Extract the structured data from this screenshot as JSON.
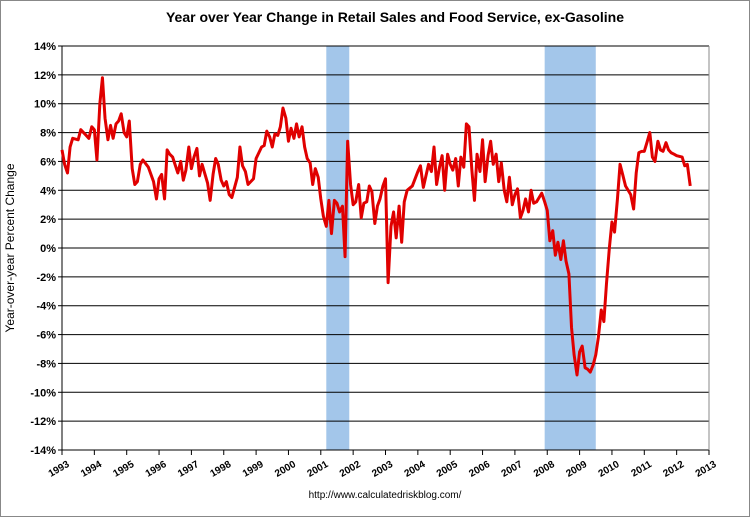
{
  "chart_data": {
    "type": "line",
    "title": "Year over Year Change in Retail Sales and Food Service, ex-Gasoline",
    "y_label": "Year-over-year Percent Change",
    "source": "http://www.calculatedriskblog.com/",
    "color": "#e00000",
    "shade_color": "#a3c6ea",
    "shaded_ranges": [
      [
        2001.17,
        2001.88
      ],
      [
        2007.92,
        2009.5
      ]
    ],
    "grid": true,
    "xlim": [
      1993,
      2013
    ],
    "xticks": [
      1993,
      1994,
      1995,
      1996,
      1997,
      1998,
      1999,
      2000,
      2001,
      2002,
      2003,
      2004,
      2005,
      2006,
      2007,
      2008,
      2009,
      2010,
      2011,
      2012,
      2013
    ],
    "ylim": [
      -14,
      14
    ],
    "yticks": [
      {
        "value": -14,
        "label": "-14%"
      },
      {
        "value": -12,
        "label": "-12%"
      },
      {
        "value": -10,
        "label": "-10%"
      },
      {
        "value": -8,
        "label": "-8%"
      },
      {
        "value": -6,
        "label": "-6%"
      },
      {
        "value": -4,
        "label": "-4%"
      },
      {
        "value": -2,
        "label": "-2%"
      },
      {
        "value": 0,
        "label": "0%"
      },
      {
        "value": 2,
        "label": "2%"
      },
      {
        "value": 4,
        "label": "4%"
      },
      {
        "value": 6,
        "label": "6%"
      },
      {
        "value": 8,
        "label": "8%"
      },
      {
        "value": 10,
        "label": "10%"
      },
      {
        "value": 12,
        "label": "12%"
      },
      {
        "value": 14,
        "label": "14%"
      }
    ],
    "x": [
      1993.0,
      1993.08,
      1993.17,
      1993.25,
      1993.33,
      1993.5,
      1993.58,
      1993.75,
      1993.83,
      1993.92,
      1994.0,
      1994.08,
      1994.17,
      1994.25,
      1994.33,
      1994.42,
      1994.5,
      1994.58,
      1994.67,
      1994.75,
      1994.83,
      1994.92,
      1995.0,
      1995.08,
      1995.17,
      1995.25,
      1995.33,
      1995.42,
      1995.5,
      1995.67,
      1995.83,
      1995.92,
      1996.0,
      1996.08,
      1996.17,
      1996.25,
      1996.33,
      1996.42,
      1996.58,
      1996.67,
      1996.75,
      1996.83,
      1996.92,
      1997.0,
      1997.08,
      1997.17,
      1997.25,
      1997.33,
      1997.5,
      1997.58,
      1997.67,
      1997.75,
      1997.83,
      1997.92,
      1998.0,
      1998.08,
      1998.17,
      1998.25,
      1998.42,
      1998.5,
      1998.58,
      1998.67,
      1998.75,
      1998.92,
      1999.0,
      1999.17,
      1999.25,
      1999.33,
      1999.42,
      1999.5,
      1999.58,
      1999.67,
      1999.75,
      1999.83,
      1999.92,
      2000.0,
      2000.08,
      2000.17,
      2000.25,
      2000.33,
      2000.42,
      2000.5,
      2000.58,
      2000.67,
      2000.75,
      2000.83,
      2000.92,
      2001.0,
      2001.08,
      2001.17,
      2001.25,
      2001.33,
      2001.42,
      2001.5,
      2001.58,
      2001.67,
      2001.75,
      2001.83,
      2001.92,
      2002.0,
      2002.08,
      2002.17,
      2002.25,
      2002.33,
      2002.42,
      2002.5,
      2002.58,
      2002.67,
      2002.75,
      2002.83,
      2002.92,
      2003.0,
      2003.08,
      2003.17,
      2003.25,
      2003.33,
      2003.42,
      2003.5,
      2003.58,
      2003.67,
      2003.83,
      2004.0,
      2004.08,
      2004.17,
      2004.33,
      2004.42,
      2004.5,
      2004.58,
      2004.67,
      2004.75,
      2004.83,
      2004.92,
      2005.0,
      2005.08,
      2005.17,
      2005.25,
      2005.33,
      2005.42,
      2005.5,
      2005.58,
      2005.67,
      2005.75,
      2005.83,
      2005.92,
      2006.0,
      2006.08,
      2006.17,
      2006.25,
      2006.33,
      2006.42,
      2006.5,
      2006.58,
      2006.67,
      2006.75,
      2006.83,
      2006.92,
      2007.0,
      2007.08,
      2007.17,
      2007.25,
      2007.33,
      2007.42,
      2007.5,
      2007.58,
      2007.67,
      2007.75,
      2007.83,
      2007.92,
      2008.0,
      2008.08,
      2008.17,
      2008.25,
      2008.33,
      2008.42,
      2008.5,
      2008.58,
      2008.67,
      2008.75,
      2008.83,
      2008.92,
      2009.0,
      2009.08,
      2009.17,
      2009.25,
      2009.33,
      2009.42,
      2009.5,
      2009.58,
      2009.67,
      2009.75,
      2009.83,
      2009.92,
      2010.0,
      2010.08,
      2010.17,
      2010.25,
      2010.33,
      2010.42,
      2010.5,
      2010.58,
      2010.67,
      2010.75,
      2010.83,
      2010.92,
      2011.0,
      2011.08,
      2011.17,
      2011.25,
      2011.33,
      2011.42,
      2011.5,
      2011.58,
      2011.67,
      2011.75,
      2011.83,
      2011.92,
      2012.0,
      2012.17,
      2012.25,
      2012.33,
      2012.42
    ],
    "values": [
      6.8,
      5.8,
      5.2,
      7.0,
      7.6,
      7.5,
      8.2,
      7.8,
      7.6,
      8.4,
      8.2,
      6.1,
      10.0,
      11.8,
      9.0,
      7.5,
      8.5,
      7.6,
      8.6,
      8.8,
      9.3,
      8.0,
      7.7,
      8.8,
      5.5,
      4.4,
      4.6,
      5.8,
      6.1,
      5.6,
      4.6,
      3.4,
      4.8,
      5.1,
      3.4,
      6.8,
      6.5,
      6.3,
      5.2,
      6.0,
      4.7,
      5.4,
      7.0,
      5.5,
      6.3,
      6.9,
      5.0,
      5.8,
      4.5,
      3.3,
      5.1,
      6.2,
      5.8,
      4.7,
      4.3,
      4.6,
      3.7,
      3.5,
      4.9,
      7.0,
      5.7,
      5.3,
      4.4,
      4.8,
      6.2,
      7.0,
      7.1,
      8.1,
      7.7,
      7.0,
      7.9,
      7.8,
      8.4,
      9.7,
      9.0,
      7.4,
      8.3,
      7.6,
      8.6,
      7.7,
      8.4,
      7.0,
      6.2,
      5.9,
      4.4,
      5.5,
      4.9,
      3.4,
      2.2,
      1.5,
      3.3,
      1.0,
      3.3,
      3.1,
      2.5,
      2.9,
      -0.6,
      7.4,
      4.4,
      3.0,
      3.2,
      4.4,
      2.1,
      3.1,
      3.2,
      4.3,
      3.9,
      1.7,
      2.9,
      3.4,
      4.3,
      4.8,
      -2.4,
      1.5,
      2.5,
      0.7,
      2.9,
      0.4,
      3.2,
      4.0,
      4.3,
      5.3,
      5.7,
      4.2,
      5.8,
      5.3,
      7.0,
      4.4,
      5.6,
      6.4,
      4.0,
      6.5,
      5.8,
      5.4,
      6.2,
      4.3,
      6.3,
      5.6,
      8.6,
      8.4,
      5.4,
      3.3,
      6.5,
      5.3,
      7.5,
      4.6,
      6.4,
      7.4,
      5.8,
      6.5,
      4.6,
      5.9,
      4.0,
      3.2,
      4.9,
      3.0,
      3.7,
      4.1,
      2.1,
      2.6,
      3.4,
      2.5,
      4.0,
      3.1,
      3.2,
      3.5,
      3.8,
      3.2,
      2.6,
      0.5,
      1.2,
      -0.5,
      0.4,
      -0.8,
      0.5,
      -0.9,
      -1.8,
      -5.5,
      -7.4,
      -8.8,
      -7.2,
      -6.8,
      -8.3,
      -8.4,
      -8.6,
      -8.1,
      -7.4,
      -6.2,
      -4.3,
      -5.1,
      -2.5,
      0.0,
      1.8,
      1.1,
      3.4,
      5.8,
      5.1,
      4.3,
      4.0,
      3.7,
      2.7,
      5.2,
      6.6,
      6.7,
      6.7,
      7.3,
      8.0,
      6.3,
      6.0,
      7.4,
      6.8,
      6.7,
      7.3,
      6.8,
      6.6,
      6.5,
      6.4,
      6.3,
      5.7,
      5.8,
      4.3
    ]
  }
}
